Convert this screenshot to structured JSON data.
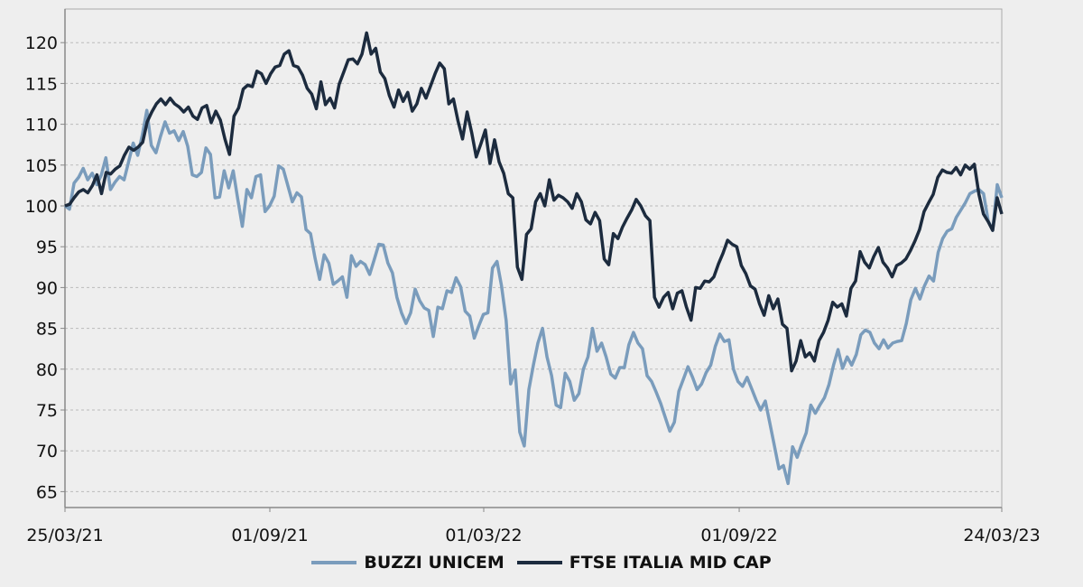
{
  "chart_data": {
    "type": "line",
    "title": "",
    "xlabel": "",
    "ylabel": "",
    "ylim": [
      63,
      124
    ],
    "yticks": [
      65,
      70,
      75,
      80,
      85,
      90,
      95,
      100,
      105,
      110,
      115,
      120
    ],
    "xticks": [
      {
        "label": "25/03/21",
        "pos": 0.0
      },
      {
        "label": "01/09/21",
        "pos": 0.2187
      },
      {
        "label": "01/03/22",
        "pos": 0.447
      },
      {
        "label": "01/09/22",
        "pos": 0.7197
      },
      {
        "label": "24/03/23",
        "pos": 1.0
      }
    ],
    "grid": true,
    "legend_position": "bottom",
    "x_start": "25/03/21",
    "x_end": "24/03/23",
    "series": [
      {
        "name": "BUZZI UNICEM",
        "color": "#7a9cbc",
        "values": [
          100,
          99.6,
          102.8,
          103.5,
          104.6,
          103.2,
          104,
          102.6,
          103.8,
          105.9,
          102,
          102.9,
          103.6,
          103.2,
          105.4,
          107.7,
          106.2,
          108.7,
          111.7,
          107.4,
          106.5,
          108.5,
          110.3,
          108.9,
          109.2,
          108,
          109.1,
          107.3,
          103.8,
          103.6,
          104.1,
          107.1,
          106.3,
          101,
          101.1,
          104.3,
          102.2,
          104.3,
          100.8,
          97.5,
          102,
          101,
          103.6,
          103.8,
          99.3,
          100,
          101.2,
          104.9,
          104.5,
          102.5,
          100.5,
          101.6,
          101.1,
          97.1,
          96.6,
          93.6,
          91,
          94,
          93,
          90.4,
          90.8,
          91.3,
          88.8,
          93.9,
          92.6,
          93.2,
          92.8,
          91.6,
          93.4,
          95.3,
          95.2,
          93,
          91.8,
          88.8,
          86.9,
          85.6,
          86.9,
          89.8,
          88.4,
          87.5,
          87.2,
          84,
          87.6,
          87.4,
          89.6,
          89.4,
          91.2,
          90.1,
          87.1,
          86.5,
          83.8,
          85.3,
          86.7,
          86.9,
          92.4,
          93.2,
          90.2,
          86,
          78.2,
          79.9,
          72.3,
          70.6,
          77.5,
          80.5,
          83.2,
          85,
          81.5,
          79.2,
          75.6,
          75.3,
          79.5,
          78.5,
          76.2,
          77,
          80,
          81.5,
          85,
          82.2,
          83.2,
          81.5,
          79.4,
          78.9,
          80.2,
          80.2,
          83,
          84.5,
          83.2,
          82.5,
          79.2,
          78.5,
          77.2,
          75.8,
          74.1,
          72.4,
          73.5,
          77.3,
          78.8,
          80.3,
          79,
          77.5,
          78.2,
          79.6,
          80.5,
          82.8,
          84.3,
          83.4,
          83.6,
          80,
          78.5,
          77.9,
          79,
          77.6,
          76.2,
          75,
          76.1,
          73.4,
          70.6,
          67.8,
          68.2,
          66,
          70.5,
          69.2,
          70.8,
          72.2,
          75.6,
          74.6,
          75.6,
          76.5,
          78.1,
          80.5,
          82.4,
          80.1,
          81.5,
          80.5,
          81.8,
          84.2,
          84.8,
          84.5,
          83.2,
          82.5,
          83.6,
          82.6,
          83.2,
          83.4,
          83.5,
          85.6,
          88.5,
          89.9,
          88.6,
          90.2,
          91.4,
          90.8,
          94.3,
          96,
          96.9,
          97.2,
          98.6,
          99.5,
          100.4,
          101.5,
          101.8,
          102,
          101.5,
          98.2,
          97,
          102.6,
          101
        ]
      },
      {
        "name": "FTSE ITALIA MID CAP",
        "color": "#1c2b3e",
        "values": [
          100,
          100.2,
          101,
          101.7,
          102,
          101.6,
          102.5,
          103.8,
          101.5,
          104.1,
          103.9,
          104.5,
          104.9,
          106.2,
          107.2,
          106.8,
          107.2,
          107.8,
          110.3,
          111.5,
          112.5,
          113.1,
          112.4,
          113.2,
          112.5,
          112.1,
          111.5,
          112.1,
          111,
          110.6,
          112,
          112.3,
          110.2,
          111.6,
          110.5,
          108.2,
          106.3,
          111,
          112,
          114.3,
          114.8,
          114.6,
          116.5,
          116.2,
          115,
          116.2,
          117,
          117.2,
          118.6,
          119,
          117.2,
          117,
          116,
          114.4,
          113.7,
          111.9,
          115.2,
          112.4,
          113.2,
          112,
          114.9,
          116.4,
          117.9,
          118,
          117.4,
          118.6,
          121.2,
          118.6,
          119.3,
          116.4,
          115.6,
          113.5,
          112.1,
          114.2,
          112.8,
          113.9,
          111.6,
          112.5,
          114.4,
          113.2,
          114.7,
          116.2,
          117.5,
          116.8,
          112.5,
          113.1,
          110.4,
          108.2,
          111.5,
          109,
          106,
          107.6,
          109.3,
          105.2,
          108.1,
          105.4,
          104,
          101.5,
          101,
          92.5,
          91,
          96.5,
          97.2,
          100.5,
          101.5,
          100,
          103.2,
          100.7,
          101.3,
          101,
          100.5,
          99.7,
          101.5,
          100.5,
          98.3,
          97.8,
          99.2,
          98.2,
          93.5,
          92.8,
          96.6,
          96,
          97.4,
          98.5,
          99.5,
          100.8,
          100,
          98.8,
          98.2,
          88.8,
          87.6,
          88.8,
          89.4,
          87.4,
          89.3,
          89.6,
          87.6,
          86,
          90,
          89.9,
          90.8,
          90.7,
          91.3,
          92.9,
          94.2,
          95.8,
          95.3,
          95,
          92.7,
          91.7,
          90.2,
          89.8,
          88,
          86.6,
          89,
          87.4,
          88.6,
          85.5,
          85,
          79.8,
          81,
          83.5,
          81.5,
          82,
          81,
          83.5,
          84.5,
          86,
          88.2,
          87.6,
          88,
          86.5,
          89.9,
          90.8,
          94.4,
          93.1,
          92.4,
          93.8,
          94.9,
          93.1,
          92.4,
          91.3,
          92.7,
          93,
          93.5,
          94.5,
          95.7,
          97.1,
          99.3,
          100.4,
          101.4,
          103.5,
          104.4,
          104.1,
          104,
          104.7,
          103.8,
          105,
          104.5,
          105.1,
          101.4,
          99,
          98.1,
          97,
          101,
          99
        ]
      }
    ]
  },
  "legend": [
    {
      "label": "BUZZI UNICEM",
      "color": "#7a9cbc"
    },
    {
      "label": "FTSE ITALIA MID CAP",
      "color": "#1c2b3e"
    }
  ]
}
